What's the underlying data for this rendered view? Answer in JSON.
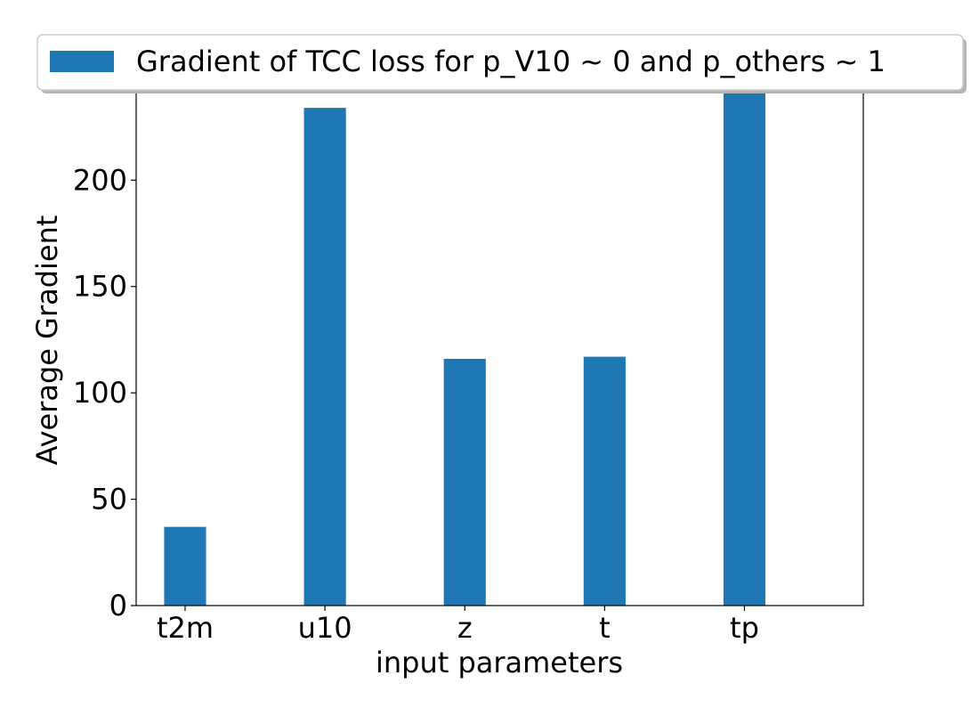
{
  "chart_data": {
    "type": "bar",
    "categories": [
      "t2m",
      "u10",
      "z",
      "t",
      "tp"
    ],
    "series": [
      {
        "name": "Gradient of TCC loss for p_V10 ~ 0 and p_others ~ 1",
        "values": [
          37,
          234,
          116,
          117,
          241
        ],
        "color": "#1f77b4"
      }
    ],
    "xlabel": "input parameters",
    "ylabel": "Average Gradient",
    "ylim": [
      0,
      242
    ],
    "yticks": [
      0,
      50,
      100,
      150,
      200
    ],
    "grid": false,
    "legend_position": "top-center"
  }
}
